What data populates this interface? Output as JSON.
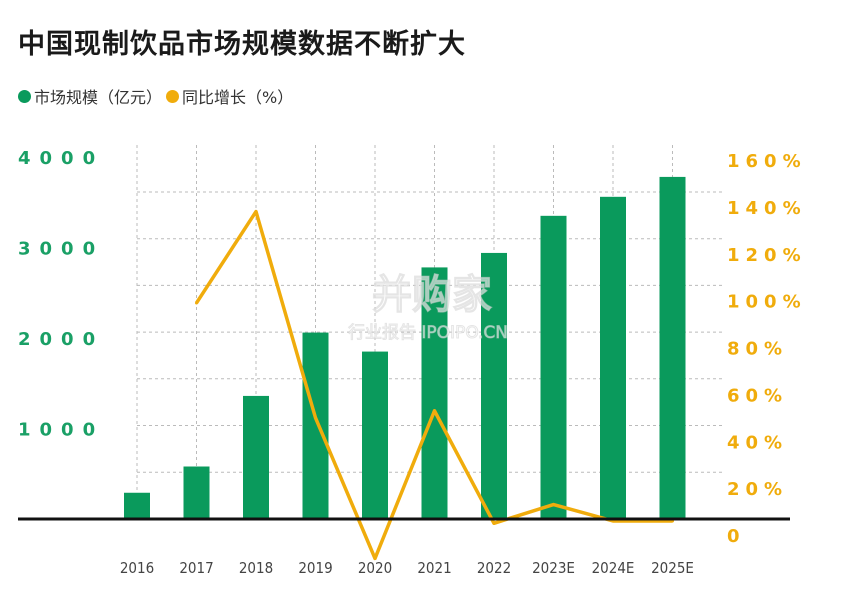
{
  "title": "中国现制饮品市场规模数据不断扩大",
  "watermark": {
    "line1": "并购家",
    "line2": "行业报告 IPOIPO.CN"
  },
  "colors": {
    "bar": "#0a9a5c",
    "line": "#f0ac0c",
    "axis": "#111111",
    "grid": "#bbbbbb",
    "left_ticks": "#1aa066",
    "right_ticks": "#f0ac0c"
  },
  "chart_data": {
    "type": "bar+line",
    "categories": [
      "2016",
      "2017",
      "2018",
      "2019",
      "2020",
      "2021",
      "2022",
      "2023E",
      "2024E",
      "2025E"
    ],
    "series": [
      {
        "name": "市场规模（亿元）",
        "type": "bar",
        "axis": "left",
        "values": [
          290,
          580,
          1360,
          2060,
          1850,
          2780,
          2940,
          3350,
          3560,
          3780
        ]
      },
      {
        "name": "同比增长（%）",
        "type": "line",
        "axis": "right",
        "values": [
          null,
          99,
          138,
          50,
          -10,
          53,
          5,
          13,
          6,
          6
        ]
      }
    ],
    "left_axis": {
      "ylim": [
        0,
        4000
      ],
      "ticks": [
        1000,
        2000,
        3000,
        4000
      ],
      "tick_labels": [
        "1000",
        "2000",
        "3000",
        "4000"
      ]
    },
    "right_axis": {
      "ylim": [
        0,
        160
      ],
      "ticks": [
        0,
        20,
        40,
        60,
        80,
        100,
        120,
        140,
        160
      ],
      "tick_labels": [
        "0",
        "20%",
        "40%",
        "60%",
        "80%",
        "100%",
        "120%",
        "140%",
        "160%"
      ]
    },
    "grid": "dashed",
    "legend_position": "top-left"
  }
}
